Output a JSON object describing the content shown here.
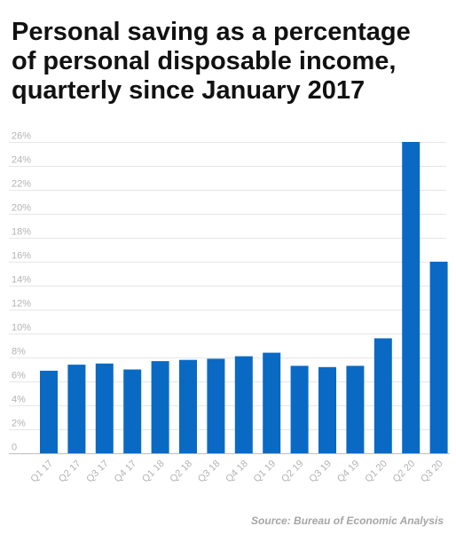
{
  "title_lines": [
    "Personal saving as a percentage",
    "of personal disposable income,",
    "quarterly since January 2017"
  ],
  "source": "Source: Bureau of Economic Analysis",
  "colors": {
    "bar": "#0a6ac3",
    "grid": "#e6e6e6",
    "axis": "#bdbdbd",
    "tick_text": "#b3b3b3",
    "title": "#111111",
    "source_text": "#a6a6a6"
  },
  "chart_data": {
    "type": "bar",
    "title": "Personal saving as a percentage of personal disposable income, quarterly since January 2017",
    "xlabel": "",
    "ylabel": "",
    "categories": [
      "Q1 17",
      "Q2 17",
      "Q3 17",
      "Q4 17",
      "Q1 18",
      "Q2 18",
      "Q3 18",
      "Q4 18",
      "Q1 19",
      "Q2 19",
      "Q3 19",
      "Q4 19",
      "Q1 20",
      "Q2 20",
      "Q3 20"
    ],
    "values": [
      6.9,
      7.4,
      7.5,
      7.0,
      7.7,
      7.8,
      7.9,
      8.1,
      8.4,
      7.3,
      7.2,
      7.3,
      9.6,
      26.0,
      16.0
    ],
    "ylim": [
      0,
      26
    ],
    "yticks": [
      0,
      2,
      4,
      6,
      8,
      10,
      12,
      14,
      16,
      18,
      20,
      22,
      24,
      26
    ],
    "ytick_labels": [
      "0",
      "2%",
      "4%",
      "6%",
      "8%",
      "10%",
      "12%",
      "14%",
      "16%",
      "18%",
      "20%",
      "22%",
      "24%",
      "26%"
    ],
    "grid": true,
    "legend": "none",
    "x_label_rotation": -45
  }
}
